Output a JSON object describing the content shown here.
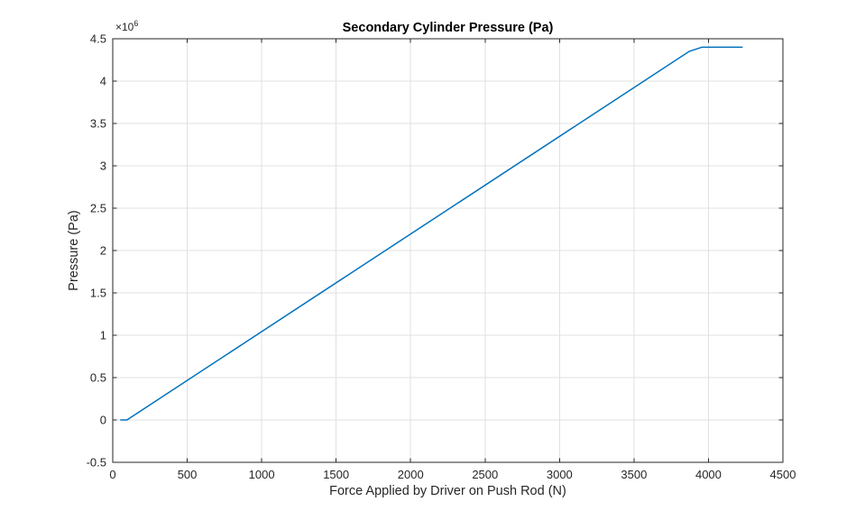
{
  "figure": {
    "background_color": "#ffffff"
  },
  "chart_data": {
    "type": "line",
    "title": "Secondary Cylinder Pressure (Pa)",
    "xlabel": "Force Applied by Driver on Push Rod (N)",
    "ylabel": "Pressure (Pa)",
    "y_exponent_base": "×10",
    "y_exponent_power": "6",
    "xlim": [
      0,
      4500
    ],
    "ylim_pa": [
      -500000,
      4500000
    ],
    "xticks": [
      0,
      500,
      1000,
      1500,
      2000,
      2500,
      3000,
      3500,
      4000,
      4500
    ],
    "ytick_labels": [
      "-0.5",
      "0",
      "0.5",
      "1",
      "1.5",
      "2",
      "2.5",
      "3",
      "3.5",
      "4",
      "4.5"
    ],
    "ytick_values_pa": [
      -500000,
      0,
      500000,
      1000000,
      1500000,
      2000000,
      2500000,
      3000000,
      3500000,
      4000000,
      4500000
    ],
    "grid": true,
    "legend_position": "none",
    "colors": {
      "line": "#0072BD",
      "axis": "#262626",
      "grid": "#e0e0e0",
      "title": "#000000",
      "background": "#ffffff"
    },
    "series": [
      {
        "name": "secondary-cylinder-pressure",
        "points_force_N_pressure_Pa": [
          [
            50,
            0
          ],
          [
            95,
            0
          ],
          [
            3870,
            4350000
          ],
          [
            3955,
            4400000
          ],
          [
            4230,
            4400000
          ]
        ]
      }
    ]
  }
}
